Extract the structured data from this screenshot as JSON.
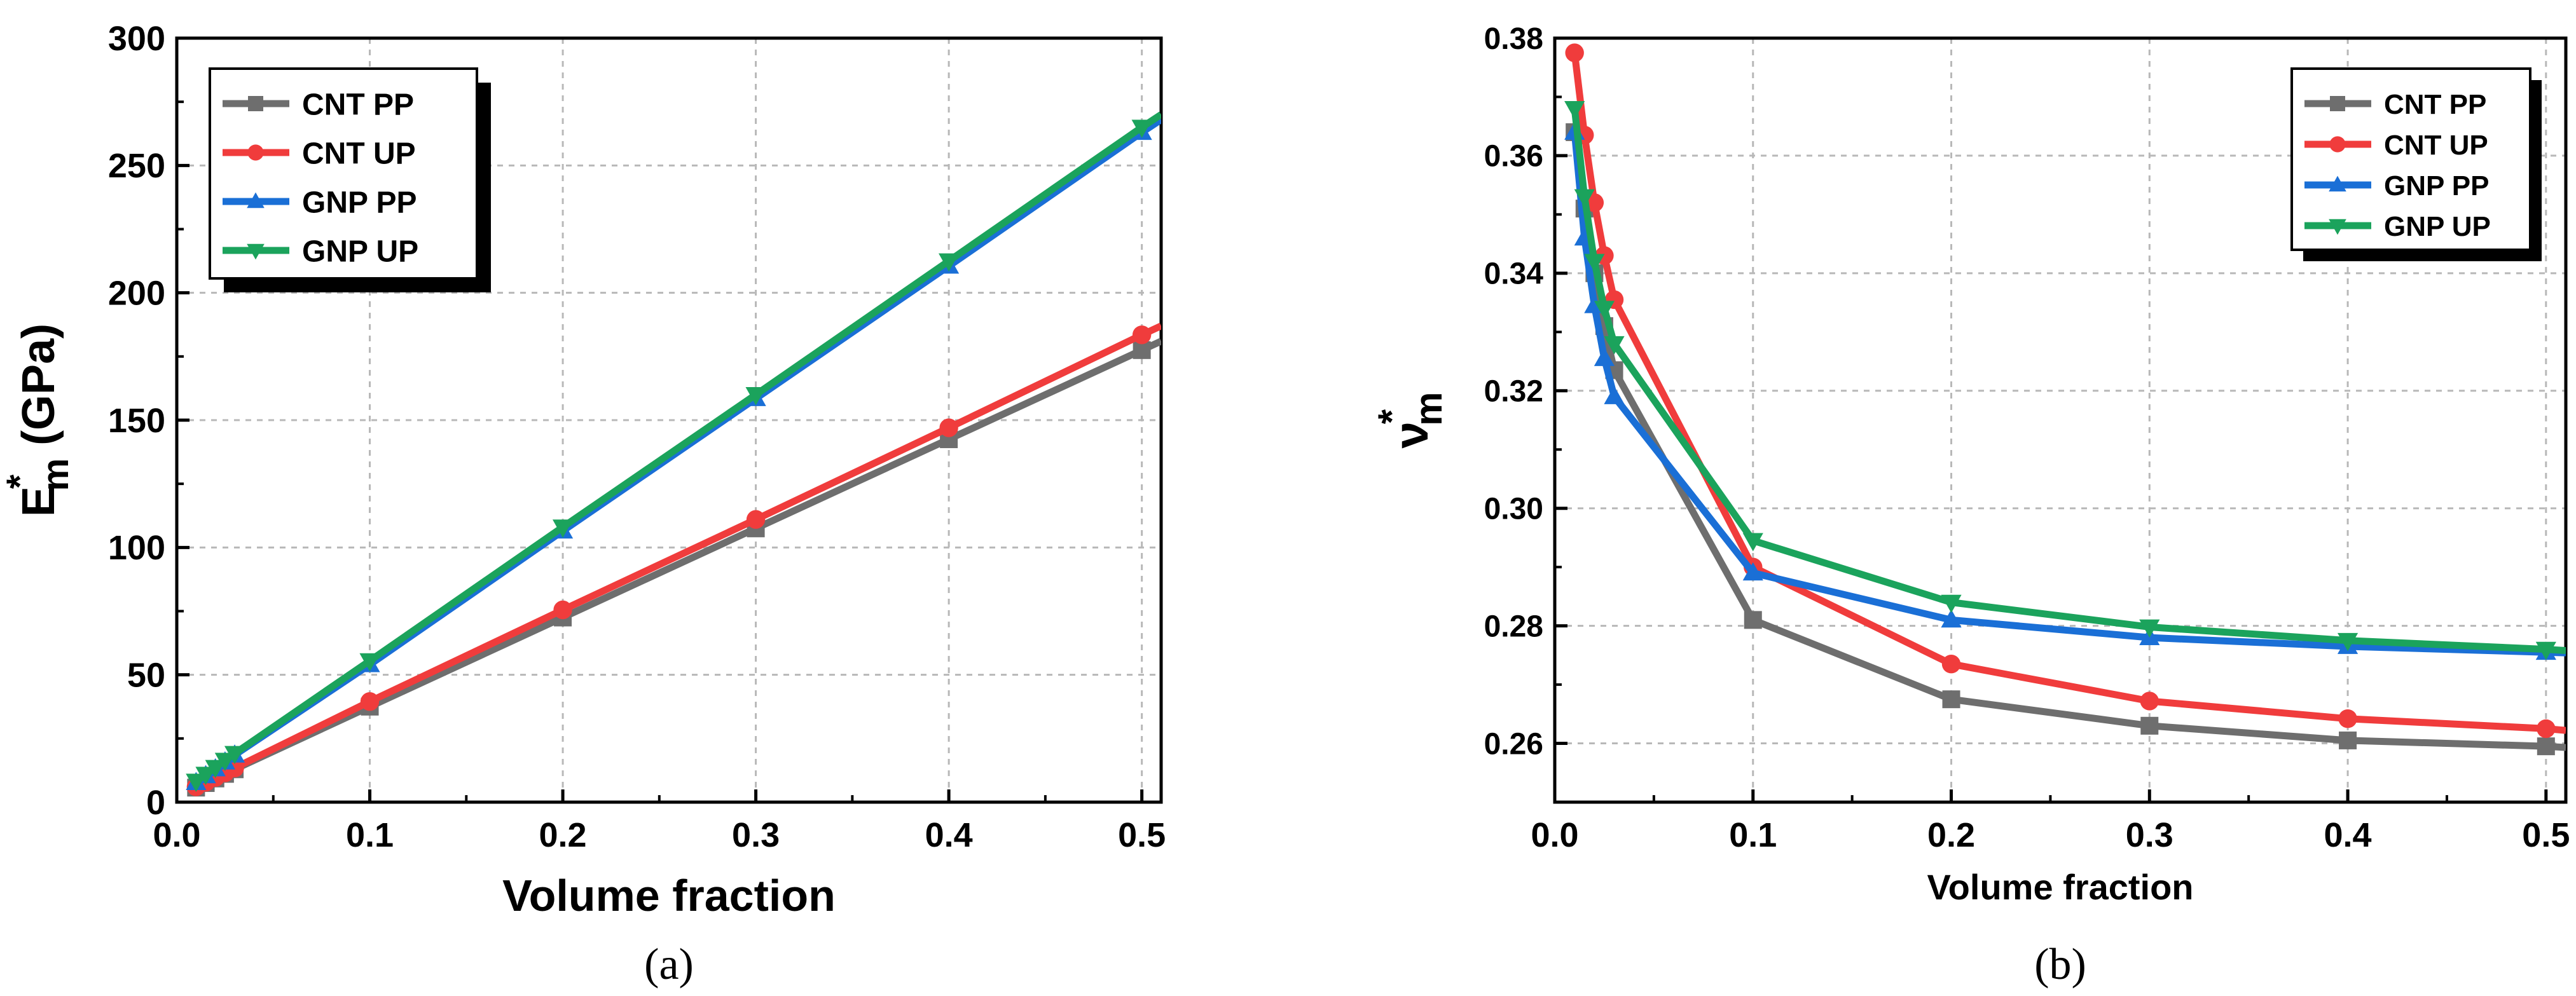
{
  "chart_data": [
    {
      "panel": "(a)",
      "type": "line",
      "xlabel": "Volume fraction",
      "ylabel_main": "E",
      "ylabel_sup": "*",
      "ylabel_sub": "m",
      "ylabel_rest": " (GPa)",
      "xlim": [
        0.0,
        0.51
      ],
      "ylim": [
        0,
        300
      ],
      "xticks": [
        0.0,
        0.1,
        0.2,
        0.3,
        0.4,
        0.5
      ],
      "xtick_labels": [
        "0.0",
        "0.1",
        "0.2",
        "0.3",
        "0.4",
        "0.5"
      ],
      "yticks": [
        0,
        50,
        100,
        150,
        200,
        250,
        300
      ],
      "ytick_labels": [
        "0",
        "50",
        "100",
        "150",
        "200",
        "250",
        "300"
      ],
      "grid": true,
      "legend_position": "top-left",
      "x": [
        0.01,
        0.015,
        0.02,
        0.025,
        0.03,
        0.1,
        0.2,
        0.3,
        0.4,
        0.5,
        0.51
      ],
      "series": [
        {
          "name": "CNT PP",
          "color": "#6e6e6e",
          "marker": "square",
          "values": [
            5.7,
            7.5,
            9.3,
            11.1,
            12.9,
            37.5,
            72.5,
            107.5,
            142.5,
            177.5,
            181.0
          ]
        },
        {
          "name": "CNT UP",
          "color": "#f03c3c",
          "marker": "circle",
          "values": [
            6.0,
            7.8,
            9.7,
            11.5,
            13.4,
            39.5,
            75.5,
            111.0,
            147.0,
            183.5,
            187.0
          ]
        },
        {
          "name": "GNP PP",
          "color": "#1a6fd6",
          "marker": "triangle-up",
          "values": [
            7.7,
            10.4,
            13.1,
            15.8,
            18.5,
            54.0,
            106.5,
            158.5,
            210.5,
            263.0,
            268.0
          ]
        },
        {
          "name": "GNP UP",
          "color": "#1ba35c",
          "marker": "triangle-down",
          "values": [
            8.2,
            10.9,
            13.6,
            16.4,
            19.1,
            55.5,
            108.0,
            160.0,
            212.5,
            265.0,
            270.0
          ]
        }
      ]
    },
    {
      "panel": "(b)",
      "type": "line",
      "xlabel": "Volume fraction",
      "ylabel_main": "ν",
      "ylabel_sup": "*",
      "ylabel_sub": "m",
      "ylabel_rest": "",
      "xlim": [
        0.0,
        0.51
      ],
      "ylim": [
        0.25,
        0.38
      ],
      "xticks": [
        0.0,
        0.1,
        0.2,
        0.3,
        0.4,
        0.5
      ],
      "xtick_labels": [
        "0.0",
        "0.1",
        "0.2",
        "0.3",
        "0.4",
        "0.5"
      ],
      "yticks": [
        0.26,
        0.28,
        0.3,
        0.32,
        0.34,
        0.36,
        0.38
      ],
      "ytick_labels": [
        "0.26",
        "0.28",
        "0.30",
        "0.32",
        "0.34",
        "0.36",
        "0.38"
      ],
      "grid": true,
      "legend_position": "top-right",
      "x": [
        0.01,
        0.015,
        0.02,
        0.025,
        0.03,
        0.1,
        0.2,
        0.3,
        0.4,
        0.5,
        0.51
      ],
      "series": [
        {
          "name": "CNT PP",
          "color": "#6e6e6e",
          "marker": "square",
          "values": [
            0.364,
            0.351,
            0.34,
            0.331,
            0.3235,
            0.281,
            0.2675,
            0.263,
            0.2605,
            0.2595,
            0.2593
          ]
        },
        {
          "name": "CNT UP",
          "color": "#f03c3c",
          "marker": "circle",
          "values": [
            0.3775,
            0.3635,
            0.352,
            0.343,
            0.3355,
            0.29,
            0.2735,
            0.2672,
            0.2642,
            0.2625,
            0.2622
          ]
        },
        {
          "name": "GNP PP",
          "color": "#1a6fd6",
          "marker": "triangle-up",
          "values": [
            0.364,
            0.346,
            0.3345,
            0.3255,
            0.319,
            0.289,
            0.281,
            0.278,
            0.2765,
            0.2755,
            0.2754
          ]
        },
        {
          "name": "GNP UP",
          "color": "#1ba35c",
          "marker": "triangle-down",
          "values": [
            0.368,
            0.353,
            0.342,
            0.334,
            0.328,
            0.2945,
            0.284,
            0.2798,
            0.2775,
            0.276,
            0.2758
          ]
        }
      ]
    }
  ]
}
